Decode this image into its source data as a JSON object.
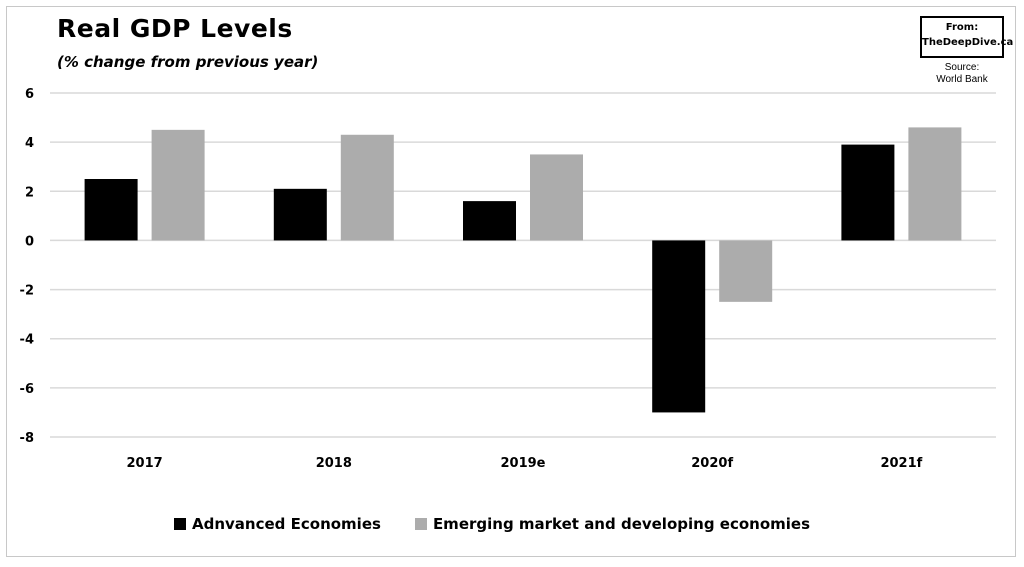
{
  "header": {
    "title": "Real GDP Levels",
    "subtitle": "(% change from previous year)"
  },
  "attribution": {
    "from_label": "From:",
    "site": "TheDeepDive.ca",
    "source_line1": "Source:",
    "source_line2": "World Bank"
  },
  "colors": {
    "advanced": "#000000",
    "emerging": "#acacac",
    "grid": "#d9d9d9"
  },
  "chart_data": {
    "type": "bar",
    "categories": [
      "2017",
      "2018",
      "2019e",
      "2020f",
      "2021f"
    ],
    "series": [
      {
        "name": "Adnvanced Economies",
        "values": [
          2.5,
          2.1,
          1.6,
          -7.0,
          3.9
        ]
      },
      {
        "name": "Emerging market and developing economies",
        "values": [
          4.5,
          4.3,
          3.5,
          -2.5,
          4.6
        ]
      }
    ],
    "ylim": [
      -8,
      6
    ],
    "yticks": [
      6,
      4,
      2,
      0,
      -2,
      -4,
      -6,
      -8
    ],
    "ytick_labels": [
      "6",
      "4",
      "2",
      "0",
      "-2",
      "-4",
      "-6",
      "-8"
    ],
    "grid": true,
    "legend": "bottom"
  }
}
